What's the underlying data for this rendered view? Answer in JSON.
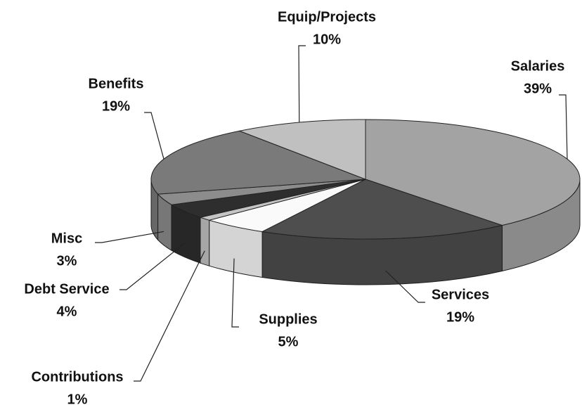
{
  "chart_data": {
    "type": "pie3d",
    "categories": [
      "Salaries",
      "Services",
      "Supplies",
      "Contributions",
      "Debt Service",
      "Misc",
      "Benefits",
      "Equip/Projects"
    ],
    "values": [
      39,
      19,
      5,
      1,
      4,
      3,
      19,
      10
    ],
    "value_labels": [
      "39%",
      "19%",
      "5%",
      "1%",
      "4%",
      "3%",
      "19%",
      "10%"
    ],
    "colors": [
      "#a3a3a3",
      "#4e4e4e",
      "#fafafa",
      "#c4c4c4",
      "#2e2e2e",
      "#8c8c8c",
      "#7a7a7a",
      "#c0c0c0"
    ]
  }
}
